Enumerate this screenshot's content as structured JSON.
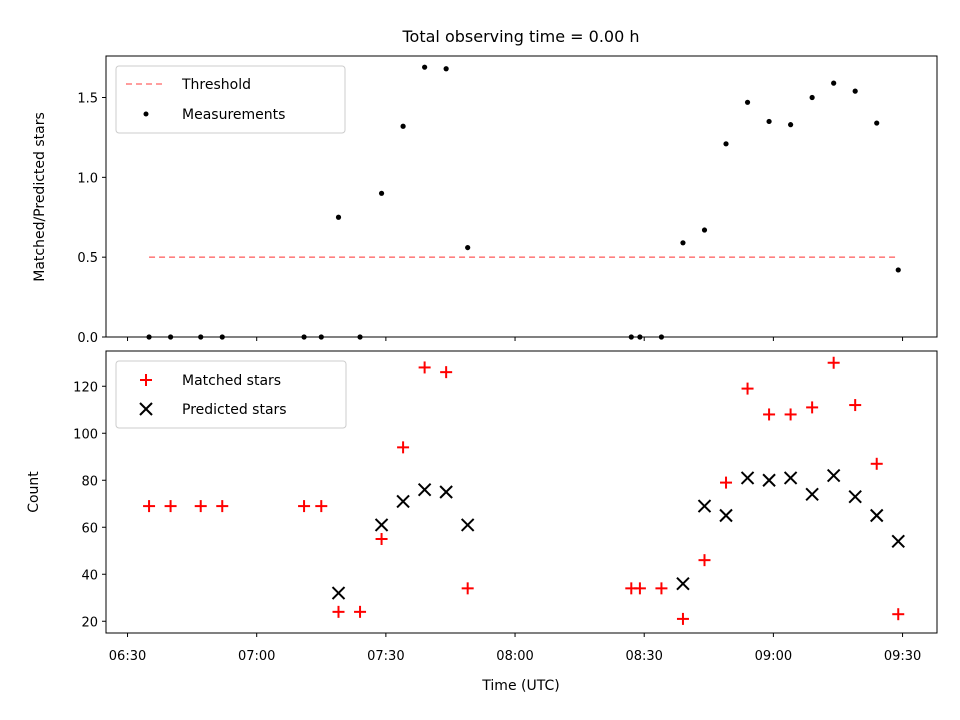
{
  "chart_data": [
    {
      "type": "scatter",
      "title": "Total observing time = 0.00 h",
      "ylabel": "Matched/Predicted stars",
      "xlabel": "",
      "xlim": [
        "06:25",
        "09:38"
      ],
      "ylim": [
        0,
        1.76
      ],
      "yticks": [
        "0.0",
        "0.5",
        "1.0",
        "1.5"
      ],
      "ytick_values": [
        0,
        0.5,
        1.0,
        1.5
      ],
      "xtick_values": [
        "06:30",
        "07:00",
        "07:30",
        "08:00",
        "08:30",
        "09:00",
        "09:30"
      ],
      "legend_position": "upper-left",
      "threshold": {
        "name": "Threshold",
        "value": 0.5,
        "x": [
          "06:35",
          "09:29"
        ],
        "color": "#ff7f7f"
      },
      "series": [
        {
          "name": "Measurements",
          "color": "#000000",
          "marker": "dot",
          "x": [
            "06:35",
            "06:40",
            "06:47",
            "06:52",
            "07:11",
            "07:15",
            "07:19",
            "07:24",
            "07:29",
            "07:34",
            "07:39",
            "07:44",
            "07:49",
            "08:27",
            "08:29",
            "08:34",
            "08:39",
            "08:44",
            "08:49",
            "08:54",
            "08:59",
            "09:04",
            "09:09",
            "09:14",
            "09:19",
            "09:24",
            "09:29"
          ],
          "y": [
            0,
            0,
            0,
            0,
            0,
            0,
            0.75,
            0,
            0.9,
            1.32,
            1.69,
            1.68,
            0.56,
            0,
            0,
            0,
            0.59,
            0.67,
            1.21,
            1.47,
            1.35,
            1.33,
            1.5,
            1.59,
            1.54,
            1.34,
            0.42
          ]
        }
      ]
    },
    {
      "type": "scatter",
      "title": "",
      "xlabel": "Time (UTC)",
      "ylabel": "Count",
      "xlim": [
        "06:25",
        "09:38"
      ],
      "ylim": [
        15,
        135
      ],
      "yticks": [
        "20",
        "40",
        "60",
        "80",
        "100",
        "120"
      ],
      "ytick_values": [
        20,
        40,
        60,
        80,
        100,
        120
      ],
      "xticks": [
        "06:30",
        "07:00",
        "07:30",
        "08:00",
        "08:30",
        "09:00",
        "09:30"
      ],
      "xtick_values": [
        "06:30",
        "07:00",
        "07:30",
        "08:00",
        "08:30",
        "09:00",
        "09:30"
      ],
      "legend_position": "upper-left",
      "series": [
        {
          "name": "Matched stars",
          "color": "#ff0000",
          "marker": "plus",
          "x": [
            "06:35",
            "06:40",
            "06:47",
            "06:52",
            "07:11",
            "07:15",
            "07:19",
            "07:24",
            "07:29",
            "07:34",
            "07:39",
            "07:44",
            "07:49",
            "08:27",
            "08:29",
            "08:34",
            "08:39",
            "08:44",
            "08:49",
            "08:54",
            "08:59",
            "09:04",
            "09:09",
            "09:14",
            "09:19",
            "09:24",
            "09:29"
          ],
          "y": [
            69,
            69,
            69,
            69,
            69,
            69,
            24,
            24,
            55,
            94,
            128,
            126,
            34,
            34,
            34,
            34,
            21,
            46,
            79,
            119,
            108,
            108,
            111,
            130,
            112,
            87,
            23
          ]
        },
        {
          "name": "Predicted stars",
          "color": "#000000",
          "marker": "x",
          "x": [
            "07:19",
            "07:29",
            "07:34",
            "07:39",
            "07:44",
            "07:49",
            "08:39",
            "08:44",
            "08:49",
            "08:54",
            "08:59",
            "09:04",
            "09:09",
            "09:14",
            "09:19",
            "09:24",
            "09:29"
          ],
          "y": [
            32,
            61,
            71,
            76,
            75,
            61,
            36,
            69,
            65,
            81,
            80,
            81,
            74,
            82,
            73,
            65,
            54
          ]
        }
      ]
    }
  ]
}
